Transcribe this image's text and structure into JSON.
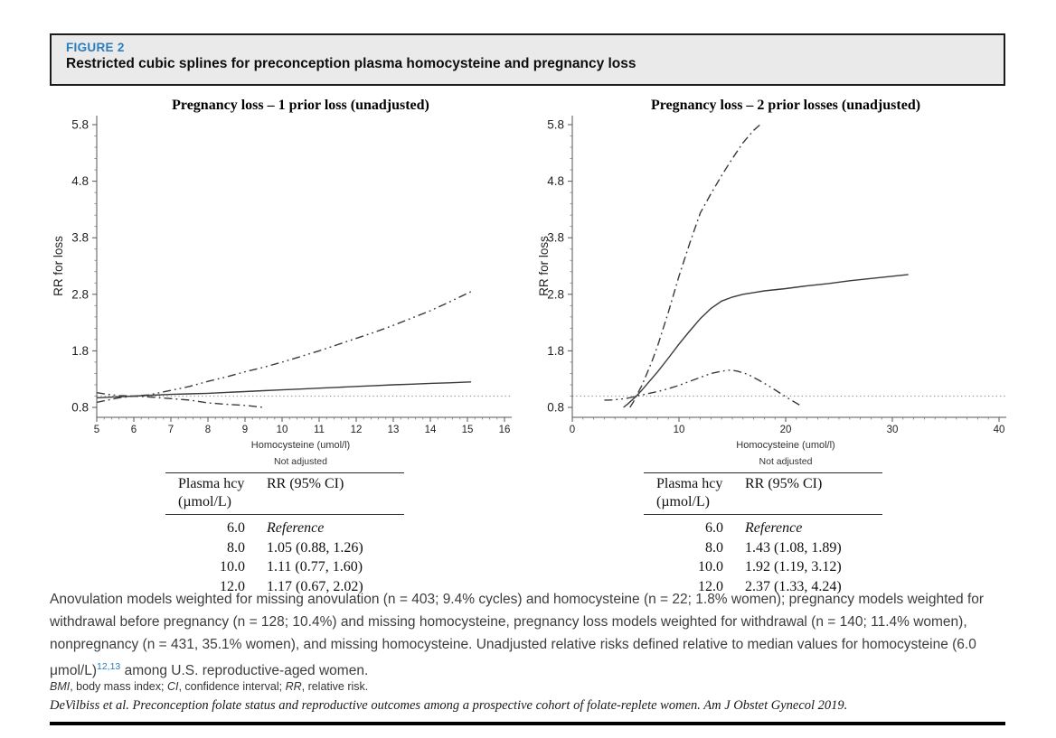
{
  "colors": {
    "accent": "#2a7ebe",
    "header_bg": "#eaeaea",
    "curve": "#3a3a3a",
    "reference_line": "#999999"
  },
  "header": {
    "figure_label": "FIGURE 2",
    "title": "Restricted cubic splines for preconception plasma homocysteine and pregnancy loss"
  },
  "chart_data": [
    {
      "type": "line",
      "title": "Pregnancy loss – 1 prior loss (unadjusted)",
      "xlabel": "Homocysteine (umol/l)",
      "ylabel": "RR for loss",
      "footnote": "Not adjusted",
      "xlim": [
        5,
        16
      ],
      "ylim": [
        0.8,
        5.8
      ],
      "xticks": [
        5,
        6,
        7,
        8,
        9,
        10,
        11,
        12,
        13,
        14,
        15,
        16
      ],
      "yticks": [
        0.8,
        1.8,
        2.8,
        3.8,
        4.8,
        5.8
      ],
      "x_minor_step": 0.2,
      "y_minor_step": 0.2,
      "grid": false,
      "reference_line_y": 1.0,
      "series": [
        {
          "id": "rr-estimate",
          "name": "RR estimate",
          "style": "solid",
          "points": [
            [
              5,
              0.97
            ],
            [
              5.5,
              0.985
            ],
            [
              6,
              1.0
            ],
            [
              6.5,
              1.015
            ],
            [
              7,
              1.03
            ],
            [
              7.5,
              1.04
            ],
            [
              8,
              1.05
            ],
            [
              8.5,
              1.065
            ],
            [
              9,
              1.08
            ],
            [
              9.5,
              1.095
            ],
            [
              10,
              1.11
            ],
            [
              10.5,
              1.125
            ],
            [
              11,
              1.14
            ],
            [
              11.5,
              1.155
            ],
            [
              12,
              1.17
            ],
            [
              12.5,
              1.185
            ],
            [
              13,
              1.2
            ],
            [
              13.5,
              1.21
            ],
            [
              14,
              1.225
            ],
            [
              14.5,
              1.235
            ],
            [
              15.1,
              1.25
            ]
          ]
        },
        {
          "id": "ci-upper",
          "name": "95% CI upper",
          "style": "dash-dot-dot",
          "points": [
            [
              5,
              1.06
            ],
            [
              5.3,
              1.03
            ],
            [
              5.6,
              1.01
            ],
            [
              6,
              1.0
            ],
            [
              6.4,
              1.02
            ],
            [
              7,
              1.1
            ],
            [
              7.5,
              1.17
            ],
            [
              8,
              1.26
            ],
            [
              8.5,
              1.34
            ],
            [
              9,
              1.43
            ],
            [
              9.5,
              1.51
            ],
            [
              10,
              1.6
            ],
            [
              10.5,
              1.7
            ],
            [
              11,
              1.8
            ],
            [
              11.5,
              1.91
            ],
            [
              12,
              2.02
            ],
            [
              12.5,
              2.13
            ],
            [
              13,
              2.25
            ],
            [
              13.5,
              2.38
            ],
            [
              14,
              2.51
            ],
            [
              14.5,
              2.66
            ],
            [
              15.1,
              2.85
            ]
          ]
        },
        {
          "id": "ci-lower",
          "name": "95% CI lower",
          "style": "dash-dot",
          "points": [
            [
              5,
              0.89
            ],
            [
              5.3,
              0.93
            ],
            [
              5.6,
              0.97
            ],
            [
              6,
              1.0
            ],
            [
              6.4,
              0.985
            ],
            [
              7,
              0.955
            ],
            [
              7.5,
              0.93
            ],
            [
              8,
              0.88
            ],
            [
              8.5,
              0.855
            ],
            [
              9,
              0.835
            ],
            [
              9.5,
              0.8
            ]
          ]
        }
      ]
    },
    {
      "type": "line",
      "title": "Pregnancy loss – 2 prior losses (unadjusted)",
      "xlabel": "Homocysteine (umol/l)",
      "ylabel": "RR for loss",
      "footnote": "Not adjusted",
      "xlim": [
        0,
        40
      ],
      "ylim": [
        0.8,
        5.8
      ],
      "xticks": [
        0,
        10,
        20,
        30,
        40
      ],
      "yticks": [
        0.8,
        1.8,
        2.8,
        3.8,
        4.8,
        5.8
      ],
      "x_minor_step": 1,
      "y_minor_step": 0.2,
      "grid": false,
      "reference_line_y": 1.0,
      "series": [
        {
          "id": "rr-estimate",
          "name": "RR estimate",
          "style": "solid",
          "points": [
            [
              4.8,
              0.8
            ],
            [
              5.2,
              0.86
            ],
            [
              6,
              1.0
            ],
            [
              6.5,
              1.1
            ],
            [
              7,
              1.21
            ],
            [
              7.5,
              1.32
            ],
            [
              8,
              1.43
            ],
            [
              9,
              1.67
            ],
            [
              10,
              1.92
            ],
            [
              11,
              2.15
            ],
            [
              12,
              2.37
            ],
            [
              13,
              2.55
            ],
            [
              14,
              2.68
            ],
            [
              15,
              2.75
            ],
            [
              16,
              2.8
            ],
            [
              17,
              2.83
            ],
            [
              18,
              2.86
            ],
            [
              20,
              2.9
            ],
            [
              22,
              2.95
            ],
            [
              24,
              2.99
            ],
            [
              26,
              3.04
            ],
            [
              28,
              3.08
            ],
            [
              30,
              3.12
            ],
            [
              31.5,
              3.15
            ]
          ]
        },
        {
          "id": "ci-upper",
          "name": "95% CI upper",
          "style": "dash-dot",
          "points": [
            [
              5.4,
              0.8
            ],
            [
              5.7,
              0.89
            ],
            [
              6,
              1.0
            ],
            [
              6.5,
              1.18
            ],
            [
              7,
              1.4
            ],
            [
              7.5,
              1.63
            ],
            [
              8,
              1.89
            ],
            [
              9,
              2.48
            ],
            [
              10,
              3.12
            ],
            [
              11,
              3.7
            ],
            [
              12,
              4.24
            ],
            [
              13,
              4.58
            ],
            [
              14,
              4.9
            ],
            [
              15,
              5.2
            ],
            [
              16,
              5.48
            ],
            [
              17,
              5.7
            ],
            [
              17.6,
              5.8
            ]
          ]
        },
        {
          "id": "ci-lower",
          "name": "95% CI lower",
          "style": "dash-dot-dot",
          "points": [
            [
              3,
              0.93
            ],
            [
              3.5,
              0.93
            ],
            [
              4,
              0.935
            ],
            [
              4.5,
              0.945
            ],
            [
              5,
              0.955
            ],
            [
              5.5,
              0.975
            ],
            [
              6,
              1.0
            ],
            [
              6.5,
              1.02
            ],
            [
              7,
              1.04
            ],
            [
              8,
              1.08
            ],
            [
              9,
              1.13
            ],
            [
              10,
              1.19
            ],
            [
              11,
              1.26
            ],
            [
              12,
              1.33
            ],
            [
              13,
              1.4
            ],
            [
              14,
              1.44
            ],
            [
              14.8,
              1.46
            ],
            [
              15.5,
              1.44
            ],
            [
              16.5,
              1.38
            ],
            [
              17.5,
              1.28
            ],
            [
              18.5,
              1.17
            ],
            [
              19.5,
              1.05
            ],
            [
              20.5,
              0.93
            ],
            [
              21.5,
              0.82
            ]
          ]
        }
      ]
    }
  ],
  "tables": [
    {
      "header_col1_line1": "Plasma hcy",
      "header_col1_line2": "(µmol/L)",
      "header_col2": "RR (95% CI)",
      "rows": [
        {
          "hcy": "6.0",
          "rr": "Reference",
          "italic": true
        },
        {
          "hcy": "8.0",
          "rr": "1.05 (0.88, 1.26)"
        },
        {
          "hcy": "10.0",
          "rr": "1.11 (0.77, 1.60)"
        },
        {
          "hcy": "12.0",
          "rr": "1.17 (0.67, 2.02)"
        }
      ]
    },
    {
      "header_col1_line1": "Plasma hcy",
      "header_col1_line2": "(µmol/L)",
      "header_col2": "RR (95% CI)",
      "rows": [
        {
          "hcy": "6.0",
          "rr": "Reference",
          "italic": true
        },
        {
          "hcy": "8.0",
          "rr": "1.43 (1.08, 1.89)"
        },
        {
          "hcy": "10.0",
          "rr": "1.92 (1.19, 3.12)"
        },
        {
          "hcy": "12.0",
          "rr": "2.37 (1.33, 4.24)"
        }
      ]
    }
  ],
  "caption": {
    "body_before_sup": "Anovulation models weighted for missing anovulation (n = 403; 9.4% cycles) and homocysteine (n = 22; 1.8% women); pregnancy models weighted for withdrawal before pregnancy (n = 128; 10.4%) and missing homocysteine, pregnancy loss models weighted for withdrawal (n = 140; 11.4% women), nonpregnancy (n = 431, 35.1% women), and missing homocysteine. Unadjusted relative risks defined relative to median values for homocysteine (6.0 μmol/L)",
    "superscript": "12,13",
    "body_after_sup": " among U.S. reproductive-aged women.",
    "abbreviations": [
      {
        "term": "BMI",
        "rest": ", body mass index; "
      },
      {
        "term": "CI",
        "rest": ", confidence interval; "
      },
      {
        "term": "RR",
        "rest": ", relative risk."
      }
    ],
    "citation": "DeVilbiss et al. Preconception folate status and reproductive outcomes among a prospective cohort of folate-replete women. Am J Obstet Gynecol 2019."
  }
}
